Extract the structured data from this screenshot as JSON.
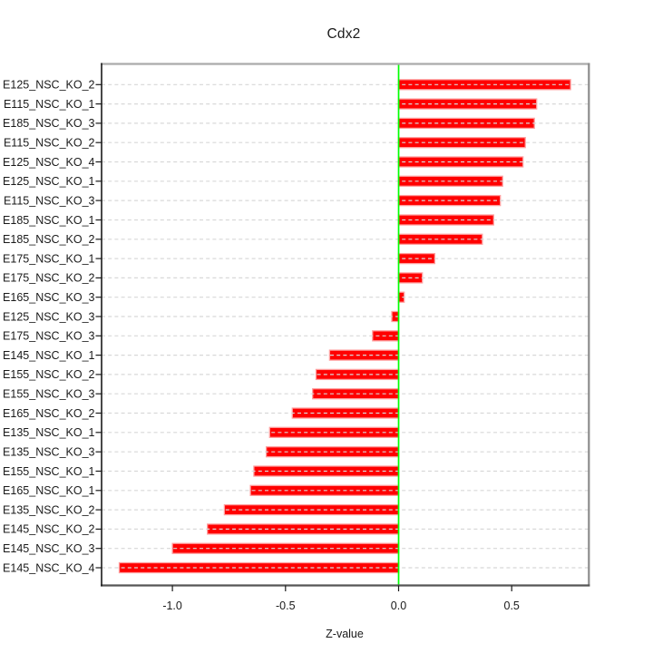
{
  "page": {
    "background_color": "#ffffff"
  },
  "chart_data": {
    "type": "bar",
    "orientation": "horizontal",
    "title": "Cdx2",
    "xlabel": "Z-value",
    "ylabel": "",
    "legend": "none",
    "grid": "dashed horizontal line per category, drawn over bars",
    "categories": [
      "E125_NSC_KO_2",
      "E115_NSC_KO_1",
      "E185_NSC_KO_3",
      "E115_NSC_KO_2",
      "E125_NSC_KO_4",
      "E125_NSC_KO_1",
      "E115_NSC_KO_3",
      "E185_NSC_KO_1",
      "E185_NSC_KO_2",
      "E175_NSC_KO_1",
      "E175_NSC_KO_2",
      "E165_NSC_KO_3",
      "E125_NSC_KO_3",
      "E175_NSC_KO_3",
      "E145_NSC_KO_1",
      "E155_NSC_KO_2",
      "E155_NSC_KO_3",
      "E165_NSC_KO_2",
      "E135_NSC_KO_1",
      "E135_NSC_KO_3",
      "E155_NSC_KO_1",
      "E165_NSC_KO_1",
      "E135_NSC_KO_2",
      "E145_NSC_KO_2",
      "E145_NSC_KO_3",
      "E145_NSC_KO_4"
    ],
    "values": [
      0.76,
      0.61,
      0.6,
      0.56,
      0.55,
      0.46,
      0.45,
      0.42,
      0.37,
      0.16,
      0.105,
      0.025,
      -0.03,
      -0.115,
      -0.305,
      -0.365,
      -0.38,
      -0.47,
      -0.57,
      -0.585,
      -0.64,
      -0.655,
      -0.77,
      -0.845,
      -1.0,
      -1.235
    ],
    "xlim": [
      -1.313,
      0.841
    ],
    "zero_line_x": 0.0,
    "xticks": {
      "values": [
        -1.0,
        -0.5,
        0.0,
        0.5
      ],
      "labels": [
        "-1.0",
        "-0.5",
        "0.0",
        "0.5"
      ]
    },
    "colors": {
      "bar_fill": "#FF0000",
      "bar_border": "#FF9E9E",
      "zero_line": "#00FF00",
      "grid_line": "#D8D8D8",
      "box_top": "#ABABAB",
      "box_right": "#8C8C8C",
      "box_bottom": "#565656",
      "axis_left": "#1A1A1A",
      "tick_color": "#1A1A1A",
      "text_color": "#1A1A1A"
    }
  }
}
